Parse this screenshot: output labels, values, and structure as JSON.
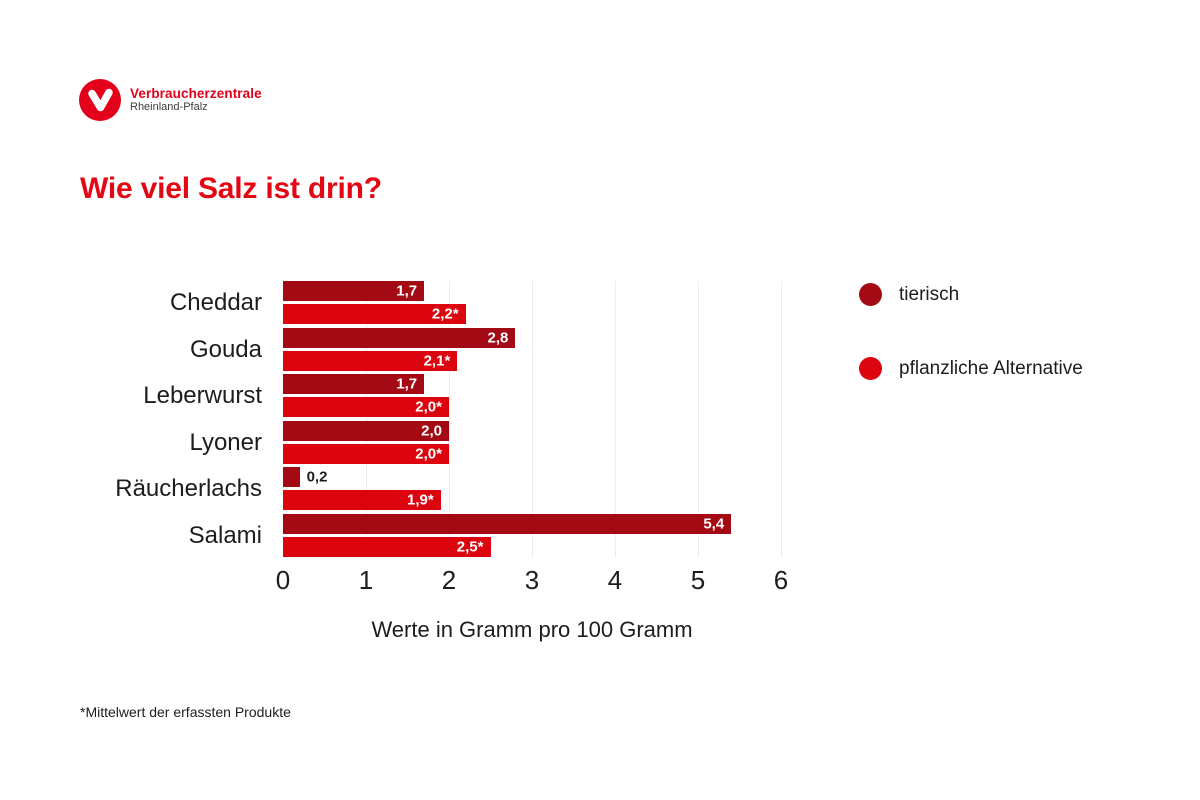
{
  "logo": {
    "brand": "Verbraucherzentrale",
    "region": "Rheinland-Pfalz",
    "color": "#e2001a"
  },
  "title": {
    "text": "Wie viel Salz ist drin?",
    "color": "#e30613"
  },
  "legend": {
    "items": [
      {
        "label": "tierisch",
        "color": "#a40a14"
      },
      {
        "label": "pflanzliche Alternative",
        "color": "#dc040f"
      }
    ]
  },
  "footnote": "*Mittelwert der erfassten Produkte",
  "colors": {
    "series_dark": "#a40a14",
    "series_bright": "#dc040f",
    "gridline": "#ededed",
    "text": "#1d1d1b"
  },
  "chart_data": {
    "type": "bar",
    "orientation": "horizontal",
    "title": "Wie viel Salz ist drin?",
    "categories": [
      "Cheddar",
      "Gouda",
      "Leberwurst",
      "Lyoner",
      "Räucherlachs",
      "Salami"
    ],
    "series": [
      {
        "name": "tierisch",
        "color": "#a40a14",
        "values": [
          1.7,
          2.8,
          1.7,
          2.0,
          0.2,
          5.4
        ],
        "labels": [
          "1,7",
          "2,8",
          "1,7",
          "2,0",
          "0,2",
          "5,4"
        ]
      },
      {
        "name": "pflanzliche Alternative",
        "color": "#dc040f",
        "values": [
          2.2,
          2.1,
          2.0,
          2.0,
          1.9,
          2.5
        ],
        "labels": [
          "2,2*",
          "2,1*",
          "2,0*",
          "2,0*",
          "1,9*",
          "2,5*"
        ]
      }
    ],
    "xlabel": "Werte in Gramm pro 100 Gramm",
    "xticks": [
      0,
      1,
      2,
      3,
      4,
      5,
      6
    ],
    "xlim": [
      0,
      6
    ],
    "grid": true,
    "legend_position": "right"
  }
}
